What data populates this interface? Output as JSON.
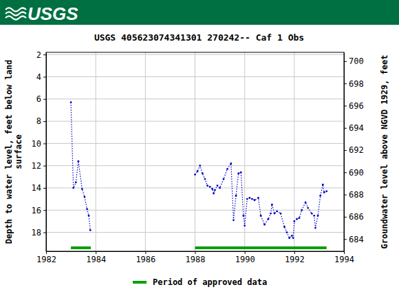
{
  "banner": {
    "text": "USGS"
  },
  "chart_data": {
    "type": "line",
    "title": "USGS 405623074341301 270242-- Caf 1 Obs",
    "ylabel": [
      "Depth to water level, feet below land",
      "surface"
    ],
    "y2label": "Groundwater level above NGVD 1929, feet",
    "xlim": [
      1982,
      1994
    ],
    "xticks": [
      1982,
      1984,
      1986,
      1988,
      1990,
      1992,
      1994
    ],
    "ylim": [
      19.7,
      1.8
    ],
    "yticks": [
      2,
      4,
      6,
      8,
      10,
      12,
      14,
      16,
      18
    ],
    "y2lim": [
      682.9,
      700.8
    ],
    "y2ticks": [
      684,
      686,
      688,
      690,
      692,
      694,
      696,
      698,
      700
    ],
    "grid": true,
    "x": [
      1983.0,
      1983.1,
      1983.2,
      1983.3,
      1983.45,
      1983.55,
      1983.65,
      1983.72,
      1983.78,
      null,
      1988.0,
      1988.1,
      1988.2,
      1988.3,
      1988.4,
      1988.5,
      1988.6,
      1988.7,
      1988.75,
      1988.8,
      1988.9,
      1989.0,
      1989.15,
      1989.3,
      1989.45,
      1989.55,
      1989.65,
      1989.75,
      1989.85,
      1989.95,
      1990.0,
      1990.1,
      1990.2,
      1990.3,
      1990.4,
      1990.55,
      1990.65,
      1990.8,
      1990.95,
      1991.05,
      1991.1,
      1991.2,
      1991.3,
      1991.45,
      1991.6,
      1991.7,
      1991.8,
      1991.9,
      1991.95,
      1992.0,
      1992.1,
      1992.2,
      1992.3,
      1992.45,
      1992.55,
      1992.7,
      1992.8,
      1992.85,
      1992.95,
      1993.05,
      1993.15,
      1993.2,
      1993.3
    ],
    "series": [
      {
        "type": "line",
        "color": "#0000cc",
        "marker": "circle",
        "line_style": "dotted",
        "values": [
          6.3,
          14.0,
          13.5,
          11.6,
          14.1,
          14.8,
          15.9,
          16.5,
          17.8,
          null,
          12.8,
          12.5,
          12.0,
          12.7,
          13.2,
          13.8,
          13.9,
          14.1,
          14.5,
          14.2,
          13.8,
          14.0,
          13.2,
          12.3,
          11.8,
          16.9,
          14.7,
          12.7,
          12.6,
          16.5,
          17.4,
          15.0,
          14.9,
          15.0,
          15.1,
          14.9,
          16.5,
          17.3,
          16.8,
          16.3,
          15.5,
          16.3,
          16.1,
          16.3,
          17.5,
          18.0,
          18.5,
          18.3,
          18.5,
          17.0,
          16.8,
          16.7,
          16.0,
          15.3,
          15.8,
          16.3,
          16.5,
          17.6,
          16.5,
          14.7,
          13.7,
          14.4,
          14.3
        ]
      }
    ],
    "approved_periods": {
      "name": "Period of approved data",
      "color": "#00a000",
      "ranges": [
        [
          1983.0,
          1983.8
        ],
        [
          1988.0,
          1993.3
        ]
      ]
    }
  }
}
